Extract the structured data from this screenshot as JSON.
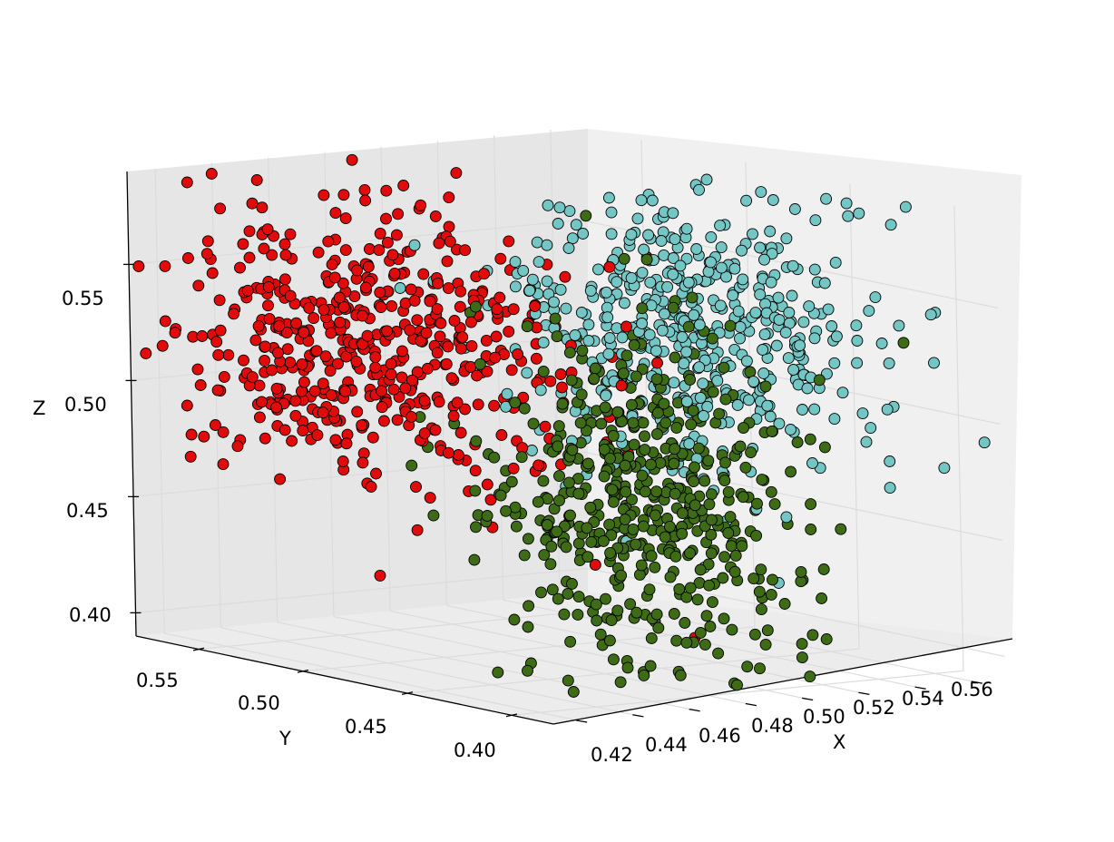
{
  "chart_data": {
    "type": "scatter",
    "subtype": "3d-scatter",
    "title": "",
    "xlabel": "X",
    "ylabel": "Y",
    "zlabel": "Z",
    "x_ticks": [
      "0.42",
      "0.44",
      "0.46",
      "0.48",
      "0.50",
      "0.52",
      "0.54",
      "0.56"
    ],
    "y_ticks": [
      "0.55",
      "0.50",
      "0.45",
      "0.40"
    ],
    "z_ticks": [
      "0.55",
      "0.50",
      "0.45",
      "0.40"
    ],
    "xlim": [
      0.41,
      0.57
    ],
    "ylim": [
      0.38,
      0.58
    ],
    "zlim": [
      0.39,
      0.59
    ],
    "grid": true,
    "legend": "none",
    "series": [
      {
        "color": "#e10b0b",
        "center": [
          0.46,
          0.53,
          0.52
        ],
        "count": 520,
        "spread": [
          0.025,
          0.035,
          0.03
        ],
        "points": [
          [
            0.45,
            0.57,
            0.56
          ],
          [
            0.44,
            0.56,
            0.49
          ],
          [
            0.47,
            0.52,
            0.55
          ],
          [
            0.46,
            0.5,
            0.5
          ],
          [
            0.48,
            0.48,
            0.52
          ],
          [
            0.47,
            0.44,
            0.44
          ],
          [
            0.49,
            0.42,
            0.41
          ],
          [
            0.45,
            0.54,
            0.53
          ]
        ]
      },
      {
        "color": "#3e6b16",
        "center": [
          0.48,
          0.43,
          0.47
        ],
        "count": 520,
        "spread": [
          0.02,
          0.03,
          0.035
        ],
        "points": [
          [
            0.47,
            0.44,
            0.45
          ],
          [
            0.49,
            0.42,
            0.48
          ],
          [
            0.48,
            0.45,
            0.52
          ],
          [
            0.46,
            0.41,
            0.43
          ],
          [
            0.5,
            0.44,
            0.55
          ],
          [
            0.47,
            0.4,
            0.4
          ],
          [
            0.48,
            0.43,
            0.46
          ],
          [
            0.49,
            0.46,
            0.5
          ]
        ]
      },
      {
        "color": "#74c6c4",
        "center": [
          0.52,
          0.46,
          0.53
        ],
        "count": 520,
        "spread": [
          0.025,
          0.03,
          0.03
        ],
        "points": [
          [
            0.53,
            0.47,
            0.55
          ],
          [
            0.51,
            0.45,
            0.52
          ],
          [
            0.55,
            0.48,
            0.54
          ],
          [
            0.52,
            0.43,
            0.46
          ],
          [
            0.54,
            0.5,
            0.57
          ],
          [
            0.5,
            0.44,
            0.48
          ],
          [
            0.56,
            0.46,
            0.53
          ],
          [
            0.52,
            0.42,
            0.43
          ]
        ]
      }
    ]
  }
}
